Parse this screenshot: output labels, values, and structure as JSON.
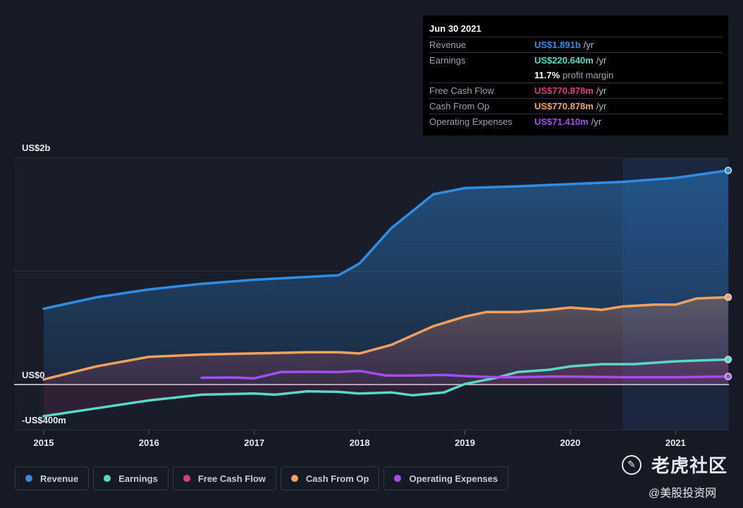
{
  "tooltip": {
    "date": "Jun 30 2021",
    "rows": [
      {
        "label": "Revenue",
        "value": "US$1.891b",
        "unit": "/yr",
        "color": "#2f8de4"
      },
      {
        "label": "Earnings",
        "value": "US$220.640m",
        "unit": "/yr",
        "color": "#58d9c6"
      },
      {
        "label": "Free Cash Flow",
        "value": "US$770.878m",
        "unit": "/yr",
        "color": "#d6407a"
      },
      {
        "label": "Cash From Op",
        "value": "US$770.878m",
        "unit": "/yr",
        "color": "#f3a15c"
      },
      {
        "label": "Operating Expenses",
        "value": "US$71.410m",
        "unit": "/yr",
        "color": "#a54df0"
      }
    ],
    "margin_value": "11.7%",
    "margin_label": "profit margin"
  },
  "legend": [
    {
      "label": "Revenue",
      "color": "#2f8de4"
    },
    {
      "label": "Earnings",
      "color": "#58d9c6"
    },
    {
      "label": "Free Cash Flow",
      "color": "#d6407a"
    },
    {
      "label": "Cash From Op",
      "color": "#f3a15c"
    },
    {
      "label": "Operating Expenses",
      "color": "#a54df0"
    }
  ],
  "watermark": {
    "title": "老虎社区",
    "subtitle": "@美股投资网"
  },
  "chart_data": {
    "type": "area",
    "y_tick_labels": [
      "US$2b",
      "US$0",
      "-US$400m"
    ],
    "y_ticks": [
      2000,
      0,
      -400
    ],
    "ylim": [
      -400,
      2000
    ],
    "xlim": [
      2015.0,
      2021.5
    ],
    "x_tick_labels": [
      "2015",
      "2016",
      "2017",
      "2018",
      "2019",
      "2020",
      "2021"
    ],
    "x_ticks": [
      2015,
      2016,
      2017,
      2018,
      2019,
      2020,
      2021
    ],
    "grid": true,
    "series": [
      {
        "name": "Revenue",
        "color": "#2f8de4",
        "area": true,
        "x": [
          2015.0,
          2015.5,
          2016.0,
          2016.5,
          2017.0,
          2017.5,
          2017.8,
          2018.0,
          2018.3,
          2018.7,
          2019.0,
          2019.5,
          2020.0,
          2020.5,
          2021.0,
          2021.5
        ],
        "y": [
          670,
          770,
          840,
          890,
          925,
          950,
          965,
          1070,
          1380,
          1680,
          1735,
          1750,
          1770,
          1790,
          1825,
          1891
        ]
      },
      {
        "name": "Cash From Op",
        "color": "#f3a15c",
        "area": true,
        "x": [
          2015.0,
          2015.5,
          2016.0,
          2016.5,
          2017.0,
          2017.5,
          2017.8,
          2018.0,
          2018.3,
          2018.7,
          2019.0,
          2019.2,
          2019.5,
          2019.8,
          2020.0,
          2020.3,
          2020.5,
          2020.8,
          2021.0,
          2021.2,
          2021.5
        ],
        "y": [
          45,
          160,
          245,
          265,
          275,
          285,
          285,
          275,
          350,
          515,
          600,
          640,
          640,
          660,
          680,
          660,
          690,
          705,
          705,
          760,
          771
        ]
      },
      {
        "name": "Earnings",
        "color": "#58d9c6",
        "area": false,
        "x": [
          2015.0,
          2015.5,
          2016.0,
          2016.5,
          2017.0,
          2017.2,
          2017.5,
          2017.8,
          2018.0,
          2018.3,
          2018.5,
          2018.8,
          2019.0,
          2019.3,
          2019.5,
          2019.8,
          2020.0,
          2020.3,
          2020.6,
          2021.0,
          2021.5
        ],
        "y": [
          -280,
          -210,
          -140,
          -90,
          -80,
          -90,
          -60,
          -65,
          -80,
          -70,
          -95,
          -70,
          5,
          60,
          110,
          130,
          160,
          180,
          180,
          205,
          221
        ]
      },
      {
        "name": "Operating Expenses",
        "color": "#a54df0",
        "area": false,
        "x": [
          2016.5,
          2016.8,
          2017.0,
          2017.25,
          2017.5,
          2017.8,
          2018.0,
          2018.25,
          2018.5,
          2018.8,
          2019.0,
          2019.3,
          2019.5,
          2019.8,
          2020.0,
          2020.5,
          2021.0,
          2021.5
        ],
        "y": [
          60,
          62,
          55,
          110,
          112,
          110,
          120,
          80,
          80,
          85,
          75,
          65,
          65,
          70,
          70,
          65,
          65,
          71
        ]
      },
      {
        "name": "Free Cash Flow",
        "color": "#d6407a",
        "area": false,
        "x": [
          2016.0,
          2017.0,
          2018.0,
          2019.0,
          2020.0,
          2021.0,
          2021.5
        ],
        "y": [
          245,
          275,
          275,
          600,
          680,
          705,
          771
        ]
      }
    ]
  }
}
